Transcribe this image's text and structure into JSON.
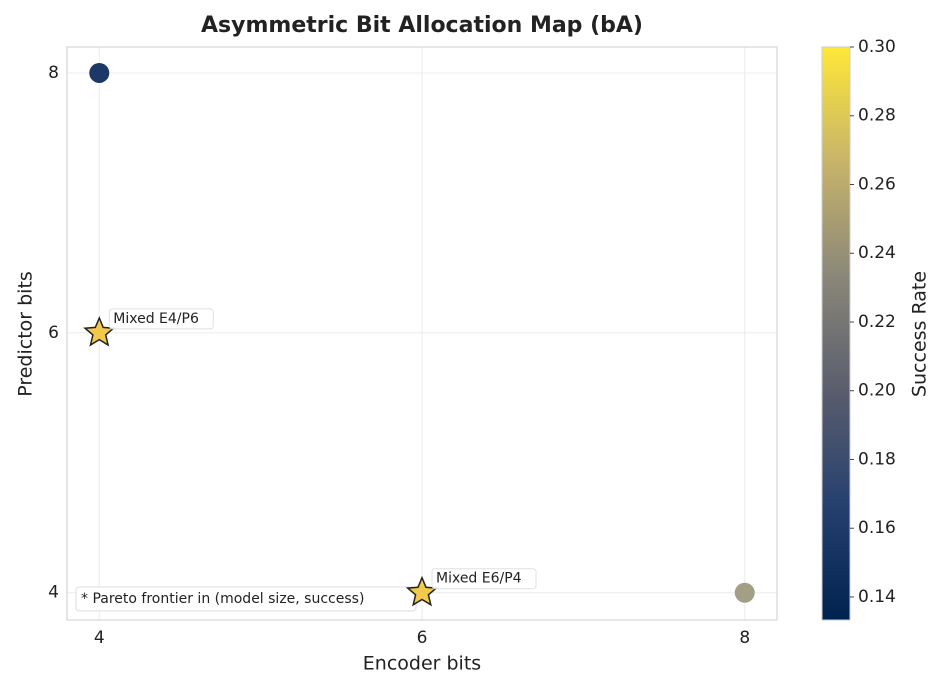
{
  "chart_data": {
    "type": "scatter",
    "title": "Asymmetric Bit Allocation Map (bA)",
    "xlabel": "Encoder bits",
    "ylabel": "Predictor bits",
    "x": [
      4,
      4,
      6,
      8
    ],
    "y": [
      8,
      6,
      4,
      4
    ],
    "c": [
      0.14,
      0.28,
      0.28,
      0.23
    ],
    "colors": [
      "#1b3866",
      "#f2c94a",
      "#f2c94a",
      "#a39e86"
    ],
    "markers": [
      "circle",
      "star",
      "star",
      "circle"
    ],
    "labels": [
      null,
      "Mixed E4/P6",
      "Mixed E6/P4",
      null
    ],
    "note": "* Pareto frontier in (model size, success)",
    "xlim": [
      3.8,
      8.2
    ],
    "ylim": [
      3.79,
      8.2
    ],
    "xticks": [
      4,
      6,
      8
    ],
    "yticks": [
      4,
      6,
      8
    ],
    "grid": true,
    "colorbar": {
      "label": "Success Rate",
      "lim": [
        0.1333,
        0.3
      ],
      "ticks": [
        0.14,
        0.16,
        0.18,
        {
          "value": 0.2,
          "label": "0.20"
        },
        0.22,
        0.24,
        0.26,
        0.28,
        {
          "value": 0.3,
          "label": "0.30"
        }
      ]
    }
  }
}
